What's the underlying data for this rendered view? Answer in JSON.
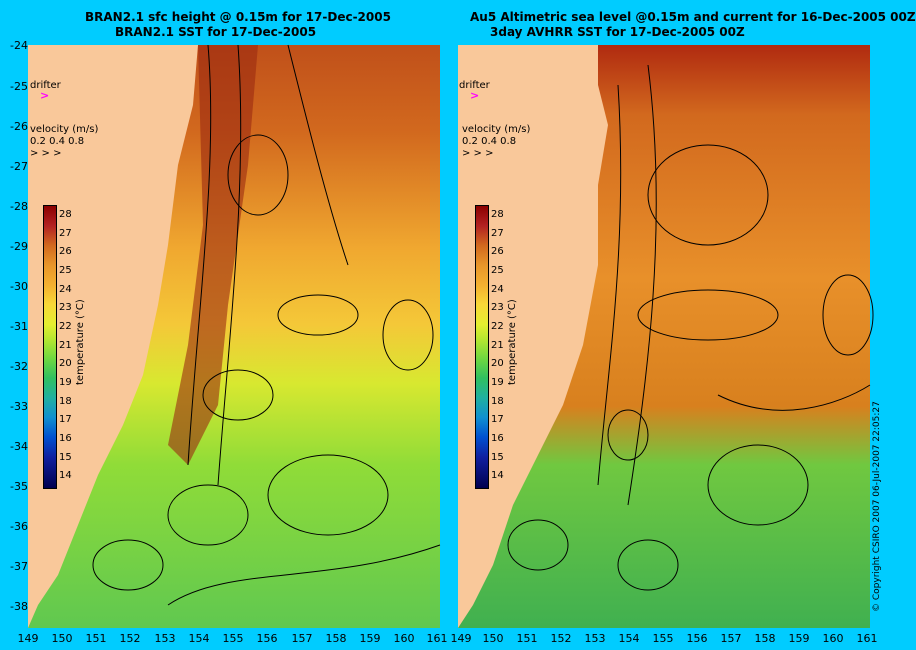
{
  "left_panel": {
    "title_line1": "BRAN2.1 sfc height @ 0.15m for 17-Dec-2005",
    "title_line2": "BRAN2.1 SST for 17-Dec-2005"
  },
  "right_panel": {
    "title_line1": "Au5 Altimetric sea level  @0.15m and current for 16-Dec-2005 00Z",
    "title_line2": "3day AVHRR SST for 17-Dec-2005 00Z"
  },
  "legend": {
    "drifter_label": "drifter",
    "drifter_symbol": ">",
    "velocity_label": "velocity (m/s)",
    "velocity_scale": "0.2 0.4 0.8",
    "velocity_arrows": "> > >"
  },
  "colorbar": {
    "label": "temperature (°C)",
    "ticks": [
      "28",
      "27",
      "26",
      "25",
      "24",
      "23",
      "22",
      "21",
      "20",
      "19",
      "18",
      "17",
      "16",
      "15",
      "14"
    ],
    "colors_top_to_bottom": [
      "#8b0000",
      "#b22222",
      "#d2691e",
      "#e8962a",
      "#f4b030",
      "#f8d838",
      "#e4ee30",
      "#b8e830",
      "#70d840",
      "#30c060",
      "#20b0a0",
      "#1090d0",
      "#0050d0",
      "#1020a0",
      "#000050"
    ]
  },
  "y_axis": {
    "ticks": [
      "-24",
      "-25",
      "-26",
      "-27",
      "-28",
      "-29",
      "-30",
      "-31",
      "-32",
      "-33",
      "-34",
      "-35",
      "-36",
      "-37",
      "-38"
    ]
  },
  "x_axis": {
    "ticks_left": [
      "149",
      "150",
      "151",
      "152",
      "153",
      "154",
      "155",
      "156",
      "157",
      "158",
      "159",
      "160",
      "161"
    ],
    "ticks_right": [
      "149",
      "150",
      "151",
      "152",
      "153",
      "154",
      "155",
      "156",
      "157",
      "158",
      "159",
      "160",
      "161"
    ]
  },
  "copyright": "© Copyright CSIRO 2007  06-Jul-2007 22:05:27",
  "colors": {
    "background": "#00ccff",
    "land": "#f9c89a",
    "drifter": "#ff00ff"
  }
}
